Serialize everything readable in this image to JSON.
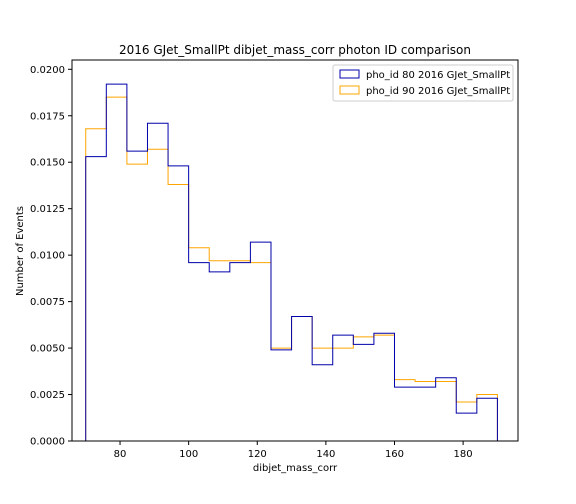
{
  "chart_data": {
    "type": "step",
    "title": "2016 GJet_SmallPt dibjet_mass_corr photon ID comparison",
    "xlabel": "dibjet_mass_corr",
    "ylabel": "Number of Events",
    "xlim": [
      66,
      196
    ],
    "ylim": [
      0,
      0.0205
    ],
    "x_ticks": [
      80,
      100,
      120,
      140,
      160,
      180
    ],
    "y_ticks": [
      0.0,
      0.0025,
      0.005,
      0.0075,
      0.01,
      0.0125,
      0.015,
      0.0175,
      0.02
    ],
    "y_tick_labels": [
      "0.0000",
      "0.0025",
      "0.0050",
      "0.0075",
      "0.0100",
      "0.0125",
      "0.0150",
      "0.0175",
      "0.0200"
    ],
    "bin_edges": [
      70,
      76,
      82,
      88,
      94,
      100,
      106,
      112,
      118,
      124,
      130,
      136,
      142,
      148,
      154,
      160,
      166,
      172,
      178,
      184,
      190
    ],
    "series": [
      {
        "name": "pho_id 80 2016 GJet_SmallPt",
        "color": "#0000aa",
        "values": [
          0.0153,
          0.0192,
          0.0156,
          0.0171,
          0.0148,
          0.0096,
          0.0091,
          0.0096,
          0.0107,
          0.0049,
          0.0067,
          0.0041,
          0.0057,
          0.0052,
          0.0058,
          0.0029,
          0.0029,
          0.0034,
          0.0015,
          0.0023
        ]
      },
      {
        "name": "pho_id 90 2016 GJet_SmallPt",
        "color": "#ffa500",
        "values": [
          0.0168,
          0.0185,
          0.0149,
          0.0157,
          0.0138,
          0.0104,
          0.0097,
          0.0097,
          0.0096,
          0.005,
          0.0067,
          0.005,
          0.005,
          0.0056,
          0.0057,
          0.0033,
          0.0032,
          0.0032,
          0.0021,
          0.0025
        ]
      }
    ],
    "legend_position": "top-right",
    "grid": false
  }
}
